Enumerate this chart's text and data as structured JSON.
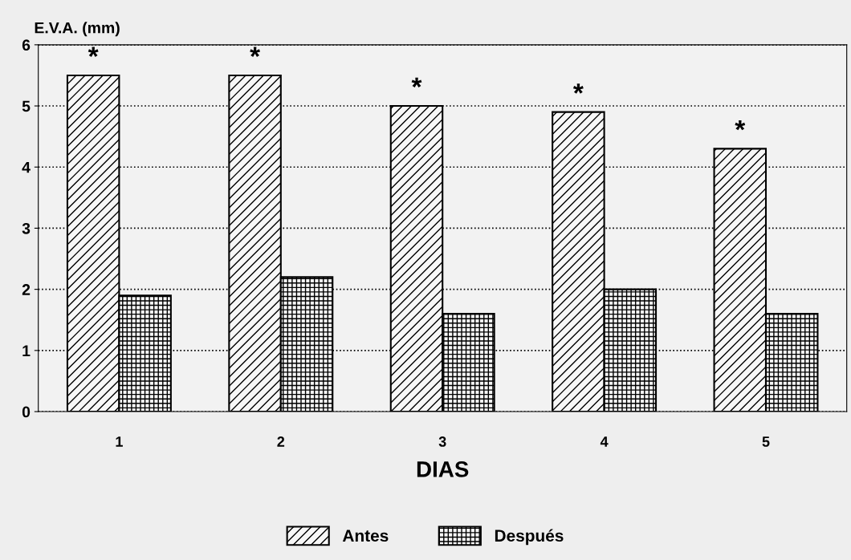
{
  "chart_data": {
    "type": "bar",
    "xlabel": "DIAS",
    "ylabel": "E.V.A. (mm)",
    "categories": [
      "1",
      "2",
      "3",
      "4",
      "5"
    ],
    "series": [
      {
        "name": "Antes",
        "color": "#000000",
        "values": [
          5.5,
          5.5,
          5.0,
          4.9,
          4.3
        ]
      },
      {
        "name": "Después",
        "color": "#000000",
        "values": [
          1.9,
          2.2,
          1.6,
          2.0,
          1.6
        ]
      }
    ],
    "annotations": [
      {
        "text": "*",
        "x": "1",
        "y": 5.5
      },
      {
        "text": "*",
        "x": "2",
        "y": 5.5
      },
      {
        "text": "*",
        "x": "3",
        "y": 5.0
      },
      {
        "text": "*",
        "x": "4",
        "y": 4.9
      },
      {
        "text": "*",
        "x": "5",
        "y": 4.3
      }
    ],
    "ylim": [
      0,
      6
    ],
    "yticks": [
      0,
      1,
      2,
      3,
      4,
      5,
      6
    ],
    "grid": "y",
    "legend": "bottom"
  }
}
